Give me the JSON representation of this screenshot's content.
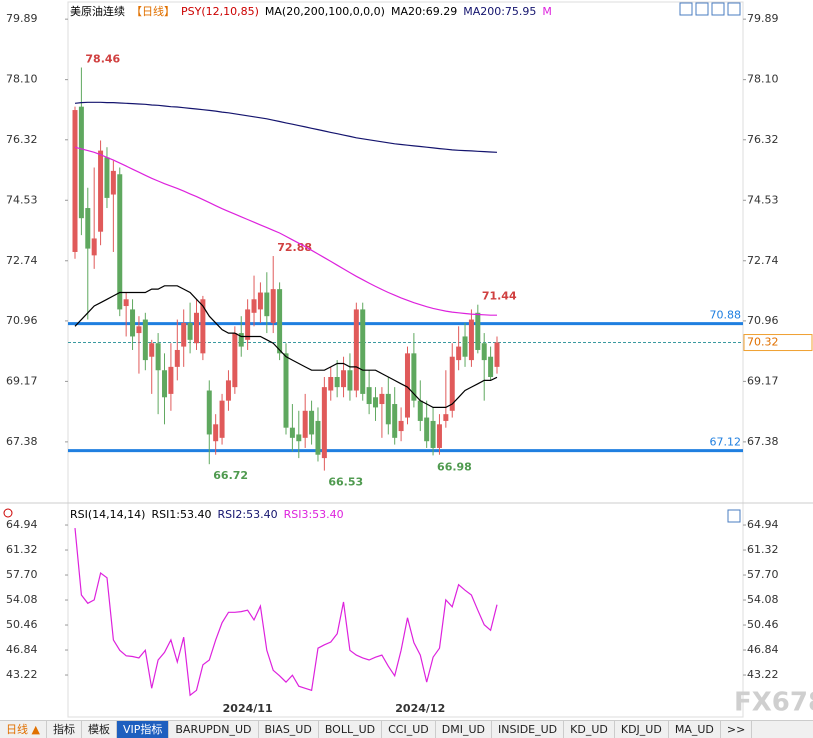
{
  "header": {
    "symbol": "美原油连续",
    "period": "【日线】",
    "indicator": "PSY(12,10,85)",
    "ma_params": "MA(20,200,100,0,0,0)"
  },
  "chart_data": [
    {
      "type": "candlestick",
      "categories": [
        null,
        null,
        null,
        null,
        null,
        null,
        null,
        null,
        null,
        null,
        null,
        null,
        null,
        null,
        null,
        null,
        null,
        null,
        null,
        null,
        null,
        null,
        null,
        null,
        null,
        null,
        null,
        "2024/11",
        null,
        null,
        null,
        null,
        null,
        null,
        null,
        null,
        null,
        null,
        null,
        null,
        null,
        null,
        null,
        null,
        null,
        null,
        null,
        null,
        null,
        null,
        null,
        null,
        null,
        null,
        "2024/12",
        null,
        null,
        null,
        null,
        null,
        null,
        null,
        null,
        null,
        null,
        null,
        null
      ],
      "ohlc": [
        [
          73.0,
          77.3,
          72.8,
          77.2
        ],
        [
          77.3,
          78.46,
          73.5,
          74.0
        ],
        [
          74.3,
          74.9,
          71.0,
          73.1
        ],
        [
          72.9,
          75.5,
          72.5,
          73.4
        ],
        [
          73.6,
          76.3,
          73.2,
          76.0
        ],
        [
          75.8,
          76.1,
          74.3,
          74.6
        ],
        [
          74.7,
          75.7,
          73.0,
          75.4
        ],
        [
          75.3,
          75.5,
          71.1,
          71.3
        ],
        [
          71.4,
          71.8,
          70.5,
          71.6
        ],
        [
          71.3,
          71.6,
          70.1,
          70.5
        ],
        [
          70.6,
          71.1,
          69.4,
          70.8
        ],
        [
          71.0,
          71.2,
          69.5,
          69.8
        ],
        [
          69.9,
          70.4,
          68.8,
          70.3
        ],
        [
          70.3,
          70.6,
          68.2,
          69.5
        ],
        [
          69.5,
          70.0,
          67.9,
          68.7
        ],
        [
          68.8,
          70.3,
          68.3,
          69.6
        ],
        [
          69.6,
          71.0,
          69.2,
          70.1
        ],
        [
          70.2,
          71.3,
          69.6,
          70.9
        ],
        [
          70.9,
          71.5,
          70.0,
          70.4
        ],
        [
          70.3,
          71.6,
          70.1,
          71.2
        ],
        [
          70.0,
          71.7,
          69.8,
          71.6
        ],
        [
          68.9,
          69.2,
          66.72,
          67.6
        ],
        [
          67.4,
          68.2,
          67.0,
          67.9
        ],
        [
          67.5,
          68.8,
          67.3,
          68.6
        ],
        [
          68.6,
          69.5,
          68.3,
          69.2
        ],
        [
          69.0,
          70.8,
          68.8,
          70.6
        ],
        [
          70.6,
          71.1,
          69.9,
          70.2
        ],
        [
          70.4,
          71.6,
          70.1,
          71.3
        ],
        [
          71.2,
          72.3,
          70.8,
          71.6
        ],
        [
          71.3,
          72.1,
          70.9,
          71.8
        ],
        [
          71.8,
          72.4,
          70.6,
          71.1
        ],
        [
          70.9,
          72.88,
          70.6,
          71.9
        ],
        [
          71.9,
          72.1,
          69.8,
          70.0
        ],
        [
          70.0,
          70.3,
          67.6,
          67.8
        ],
        [
          67.8,
          68.5,
          67.1,
          67.5
        ],
        [
          67.6,
          68.3,
          66.9,
          67.4
        ],
        [
          67.5,
          68.8,
          67.2,
          68.3
        ],
        [
          68.3,
          68.6,
          67.3,
          67.6
        ],
        [
          68.0,
          68.4,
          66.8,
          67.0
        ],
        [
          66.9,
          69.3,
          66.53,
          69.0
        ],
        [
          68.9,
          69.6,
          68.6,
          69.3
        ],
        [
          69.3,
          69.8,
          68.7,
          69.0
        ],
        [
          69.0,
          69.9,
          68.7,
          69.5
        ],
        [
          69.5,
          70.0,
          68.6,
          68.9
        ],
        [
          68.9,
          71.5,
          68.7,
          71.3
        ],
        [
          71.3,
          71.5,
          68.6,
          68.8
        ],
        [
          69.0,
          69.5,
          68.2,
          68.5
        ],
        [
          68.7,
          69.0,
          68.0,
          68.4
        ],
        [
          68.5,
          69.0,
          67.5,
          68.8
        ],
        [
          68.8,
          69.3,
          67.6,
          67.9
        ],
        [
          68.5,
          69.0,
          67.3,
          67.5
        ],
        [
          67.7,
          68.4,
          67.4,
          68.0
        ],
        [
          68.1,
          70.2,
          67.9,
          70.0
        ],
        [
          70.0,
          70.6,
          68.4,
          68.6
        ],
        [
          68.6,
          69.2,
          67.7,
          68.0
        ],
        [
          68.1,
          68.6,
          67.2,
          67.4
        ],
        [
          68.0,
          68.4,
          66.98,
          67.2
        ],
        [
          67.2,
          68.2,
          67.0,
          67.9
        ],
        [
          68.0,
          69.5,
          67.8,
          68.2
        ],
        [
          68.3,
          70.3,
          68.1,
          69.9
        ],
        [
          69.8,
          70.8,
          69.5,
          70.2
        ],
        [
          70.5,
          70.9,
          69.6,
          69.9
        ],
        [
          69.8,
          71.3,
          69.6,
          71.0
        ],
        [
          71.2,
          71.44,
          70.0,
          70.1
        ],
        [
          70.3,
          70.6,
          68.6,
          69.8
        ],
        [
          69.9,
          70.2,
          69.2,
          69.3
        ],
        [
          69.6,
          70.5,
          69.4,
          70.32
        ]
      ],
      "up_color": "#e05a5a",
      "down_color": "#5fa85f",
      "series": [
        {
          "name": "MA20:69.29",
          "color": "#000000",
          "values": [
            70.8,
            71.0,
            71.2,
            71.4,
            71.5,
            71.6,
            71.7,
            71.8,
            71.8,
            71.8,
            71.8,
            71.8,
            71.9,
            71.9,
            72.0,
            72.0,
            72.0,
            71.9,
            71.8,
            71.6,
            71.4,
            71.1,
            70.9,
            70.7,
            70.6,
            70.6,
            70.5,
            70.5,
            70.5,
            70.5,
            70.4,
            70.3,
            70.1,
            69.9,
            69.8,
            69.7,
            69.6,
            69.5,
            69.5,
            69.5,
            69.6,
            69.7,
            69.7,
            69.6,
            69.6,
            69.5,
            69.5,
            69.5,
            69.4,
            69.3,
            69.2,
            69.1,
            69.0,
            68.8,
            68.6,
            68.5,
            68.4,
            68.4,
            68.4,
            68.5,
            68.7,
            68.9,
            69.0,
            69.1,
            69.2,
            69.2,
            69.29
          ]
        },
        {
          "name": "MA200:75.95",
          "color": "#14146e",
          "values": [
            77.4,
            77.42,
            77.43,
            77.43,
            77.43,
            77.42,
            77.42,
            77.41,
            77.4,
            77.39,
            77.38,
            77.37,
            77.35,
            77.34,
            77.32,
            77.3,
            77.29,
            77.27,
            77.25,
            77.23,
            77.21,
            77.19,
            77.17,
            77.14,
            77.12,
            77.09,
            77.06,
            77.03,
            77.0,
            76.97,
            76.94,
            76.9,
            76.86,
            76.82,
            76.78,
            76.74,
            76.7,
            76.66,
            76.62,
            76.58,
            76.54,
            76.5,
            76.46,
            76.42,
            76.38,
            76.35,
            76.32,
            76.29,
            76.26,
            76.23,
            76.2,
            76.18,
            76.16,
            76.14,
            76.12,
            76.1,
            76.08,
            76.06,
            76.04,
            76.02,
            76.01,
            76.0,
            75.99,
            75.98,
            75.97,
            75.96,
            75.95
          ]
        },
        {
          "name": "M",
          "color": "#dd22dd",
          "values": [
            76.1,
            76.05,
            76.0,
            75.95,
            75.88,
            75.8,
            75.72,
            75.63,
            75.54,
            75.45,
            75.36,
            75.27,
            75.18,
            75.1,
            75.02,
            74.95,
            74.88,
            74.8,
            74.72,
            74.64,
            74.55,
            74.46,
            74.37,
            74.28,
            74.2,
            74.12,
            74.04,
            73.96,
            73.88,
            73.8,
            73.72,
            73.64,
            73.56,
            73.46,
            73.36,
            73.26,
            73.16,
            73.05,
            72.94,
            72.83,
            72.72,
            72.61,
            72.5,
            72.39,
            72.28,
            72.18,
            72.08,
            71.98,
            71.89,
            71.8,
            71.72,
            71.64,
            71.57,
            71.5,
            71.44,
            71.38,
            71.33,
            71.29,
            71.25,
            71.22,
            71.2,
            71.18,
            71.16,
            71.15,
            71.14,
            71.13,
            71.13
          ]
        }
      ],
      "levels": [
        70.88,
        67.12
      ],
      "level_color": "#1f7fe0",
      "last_price": 70.32,
      "ylim": [
        65.66,
        80.22
      ],
      "yticks": [
        79.89,
        {
          "value": 78.1,
          "label": "78.10"
        },
        76.32,
        74.53,
        72.74,
        70.96,
        69.17,
        67.38
      ]
    },
    {
      "type": "line",
      "title": "RSI(14,14,14)",
      "legend": [
        {
          "name": "RSI1:53.40",
          "color": "#000000"
        },
        {
          "name": "RSI2:53.40",
          "color": "#14146e"
        }
      ],
      "series": [
        {
          "name": "RSI3:53.40",
          "color": "#dd22dd",
          "values": [
            64.5,
            54.8,
            53.6,
            54.1,
            58.0,
            57.3,
            48.3,
            46.8,
            46.0,
            45.9,
            45.7,
            46.8,
            41.3,
            45.4,
            46.5,
            48.3,
            45.1,
            48.7,
            40.3,
            41.0,
            44.7,
            45.4,
            48.3,
            50.8,
            52.3,
            52.3,
            52.4,
            52.6,
            51.2,
            53.2,
            46.8,
            43.9,
            43.1,
            42.2,
            43.2,
            41.6,
            41.3,
            41.0,
            47.1,
            47.6,
            48.0,
            49.2,
            53.8,
            46.8,
            46.1,
            45.7,
            45.4,
            45.8,
            46.1,
            44.5,
            43.1,
            46.8,
            51.5,
            47.9,
            46.1,
            42.2,
            45.8,
            47.1,
            54.1,
            53.1,
            56.3,
            55.5,
            54.8,
            52.6,
            50.5,
            49.7,
            53.4
          ]
        }
      ],
      "ylim": [
        37.43,
        67.84
      ],
      "yticks": [
        64.94,
        61.32,
        {
          "value": 57.7,
          "label": "57.70"
        },
        54.08,
        50.46,
        46.84,
        43.22
      ]
    }
  ],
  "tabs": [
    "日线 ▲",
    "指标",
    "模板",
    "VIP指标",
    "BARUPDN_UD",
    "BIAS_UD",
    "BOLL_UD",
    "CCI_UD",
    "DMI_UD",
    "INSIDE_UD",
    "KD_UD",
    "KDJ_UD",
    "MA_UD",
    ">>"
  ],
  "watermark": "FX678"
}
